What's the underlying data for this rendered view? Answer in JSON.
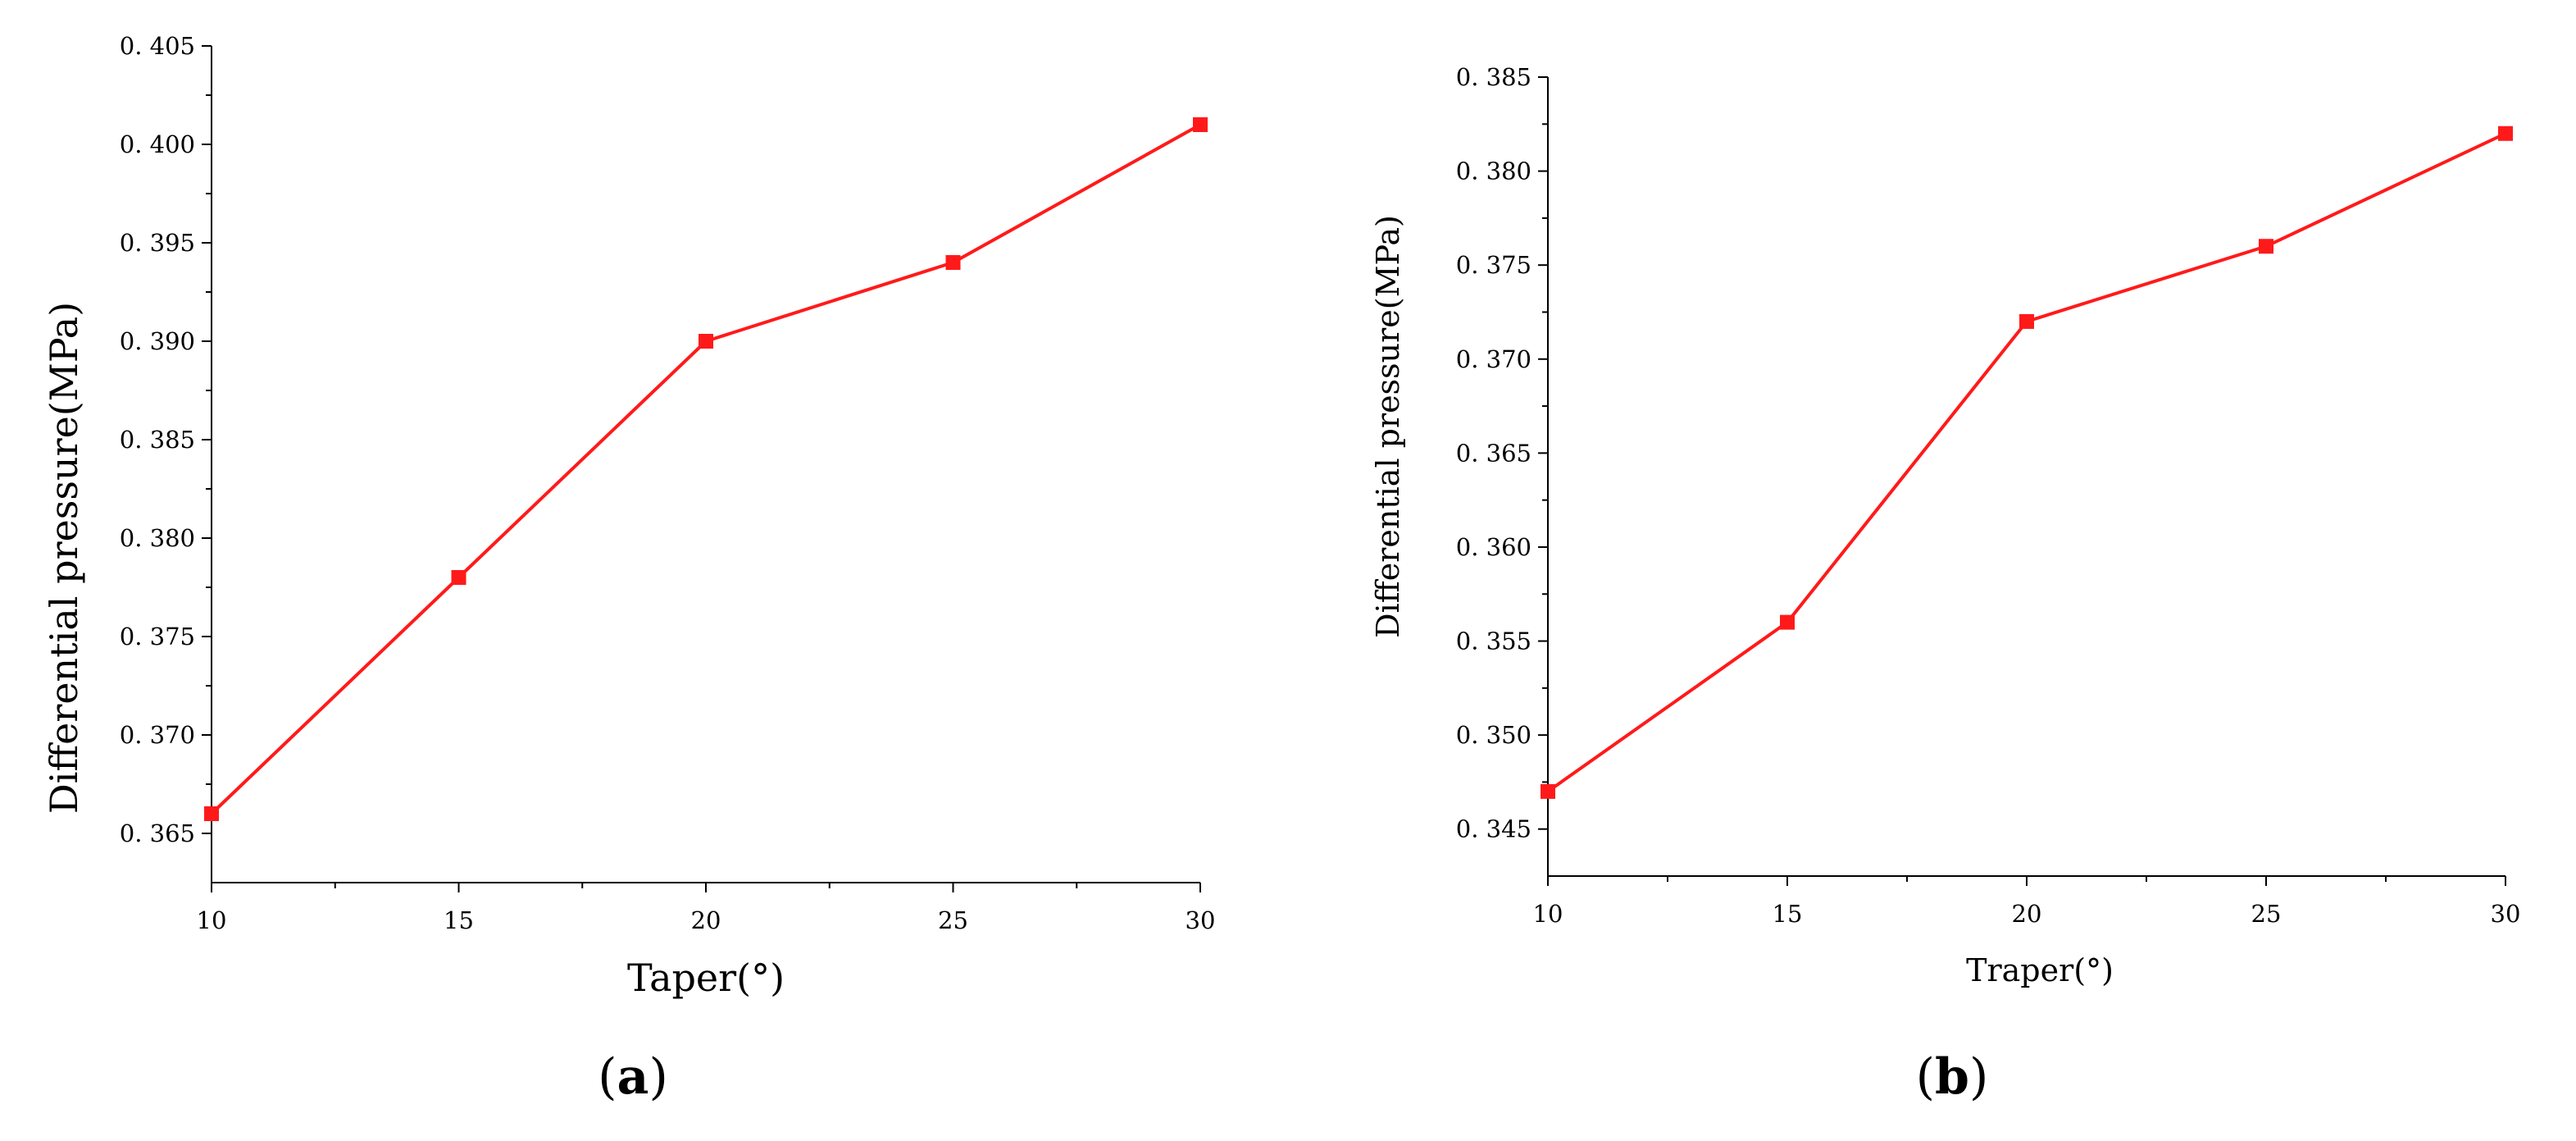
{
  "chart_data": [
    {
      "type": "line",
      "panel_label": "a",
      "title": "",
      "xlabel": "Taper(°)",
      "ylabel": "Differential pressure(MPa)",
      "x": [
        10,
        15,
        20,
        25,
        30
      ],
      "series": [
        {
          "values": [
            0.366,
            0.378,
            0.39,
            0.394,
            0.401
          ],
          "color": "#ff1a1a",
          "marker": "square"
        }
      ],
      "xlim": [
        10,
        30
      ],
      "ylim": [
        0.3625,
        0.405
      ],
      "xticks": [
        10,
        15,
        20,
        25,
        30
      ],
      "xtick_labels": [
        "10",
        "15",
        "20",
        "25",
        "30"
      ],
      "yticks": [
        0.365,
        0.37,
        0.375,
        0.38,
        0.385,
        0.39,
        0.395,
        0.4,
        0.405
      ],
      "ytick_labels": [
        "0. 365",
        "0. 370",
        "0. 375",
        "0. 380",
        "0. 385",
        "0. 390",
        "0. 395",
        "0. 400",
        "0. 405"
      ],
      "grid": false,
      "legend": "none"
    },
    {
      "type": "line",
      "panel_label": "b",
      "title": "",
      "xlabel": "Traper(°)",
      "ylabel": "Differential pressure(MPa)",
      "x": [
        10,
        15,
        20,
        25,
        30
      ],
      "series": [
        {
          "values": [
            0.347,
            0.356,
            0.372,
            0.376,
            0.382
          ],
          "color": "#ff1a1a",
          "marker": "square"
        }
      ],
      "xlim": [
        10,
        30
      ],
      "ylim": [
        0.3425,
        0.385
      ],
      "xticks": [
        10,
        15,
        20,
        25,
        30
      ],
      "xtick_labels": [
        "10",
        "15",
        "20",
        "25",
        "30"
      ],
      "yticks": [
        0.345,
        0.35,
        0.355,
        0.36,
        0.365,
        0.37,
        0.375,
        0.38,
        0.385
      ],
      "ytick_labels": [
        "0. 345",
        "0. 350",
        "0. 355",
        "0. 360",
        "0. 365",
        "0. 370",
        "0. 375",
        "0. 380",
        "0. 385"
      ],
      "grid": false,
      "legend": "none"
    }
  ]
}
